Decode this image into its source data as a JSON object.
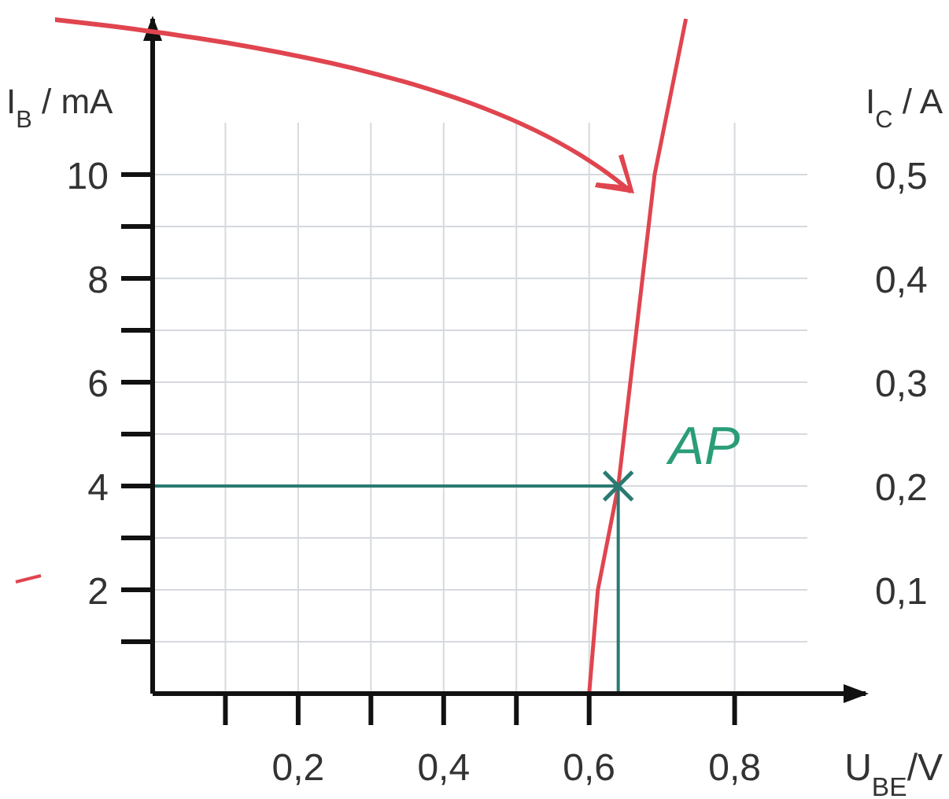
{
  "chart_data": {
    "type": "line",
    "xlabel": "U$_{BE}$/V",
    "ylabel": "I$_{B}$ / mA",
    "y2label": "I$_{C}$ / A",
    "xlim": [
      0,
      0.98
    ],
    "ylim": [
      0,
      13
    ],
    "y2lim": [
      0,
      0.65
    ],
    "xticks": [
      {
        "value": 0.1,
        "label": null
      },
      {
        "value": 0.2,
        "label": "0,2"
      },
      {
        "value": 0.3,
        "label": null
      },
      {
        "value": 0.4,
        "label": "0,4"
      },
      {
        "value": 0.5,
        "label": null
      },
      {
        "value": 0.6,
        "label": "0,6"
      },
      {
        "value": 0.8,
        "label": "0,8"
      }
    ],
    "yticks": [
      {
        "value": 1,
        "label": null
      },
      2,
      {
        "value": 3,
        "label": null
      },
      4,
      {
        "value": 5,
        "label": null
      },
      6,
      {
        "value": 7,
        "label": null
      },
      8,
      {
        "value": 9,
        "label": null
      },
      10
    ],
    "y2ticks": [
      {
        "value": 0.1,
        "label": "0,1"
      },
      {
        "value": 0.2,
        "label": "0,2"
      },
      {
        "value": 0.3,
        "label": "0,3"
      },
      {
        "value": 0.4,
        "label": "0,4"
      },
      {
        "value": 0.5,
        "label": "0,5"
      }
    ],
    "grid": true,
    "annotations": [
      {
        "text": "AP",
        "x": 0.64,
        "y": 4
      }
    ],
    "series": [
      {
        "color": "#e0454f",
        "x": [
          0,
          0.6,
          0.612,
          0.64,
          0.69,
          0.733
        ],
        "values": [
          0,
          0,
          2,
          4,
          10,
          13
        ]
      },
      {
        "color": "#2a7a72",
        "x": [
          0,
          0.64,
          0.64
        ],
        "values": [
          4,
          4,
          0
        ]
      },
      {
        "type": "scatter",
        "color": "#2a7a72",
        "marker": "cross",
        "x": [
          0.64
        ],
        "values": [
          4
        ]
      }
    ]
  }
}
